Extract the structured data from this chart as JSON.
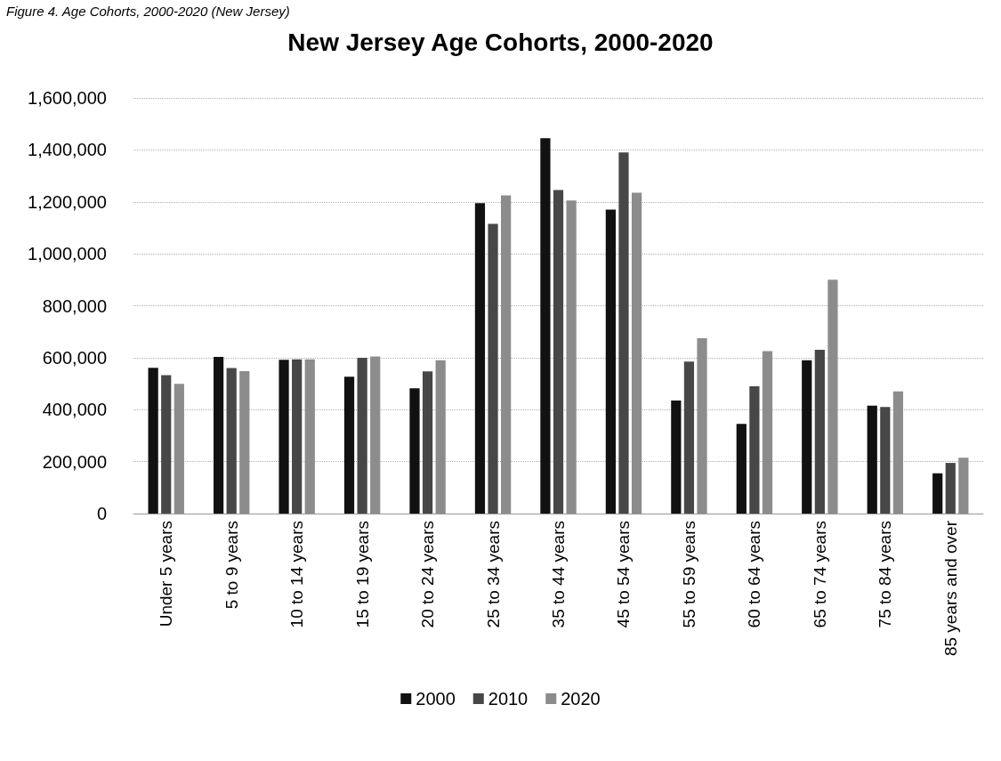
{
  "chart_data": {
    "type": "bar",
    "title": "New Jersey Age Cohorts, 2000-2020",
    "annotations": [
      "Figure 4. Age Cohorts, 2000-2020 (New Jersey)"
    ],
    "categories": [
      "Under 5 years",
      "5 to 9 years",
      "10 to 14 years",
      "15 to 19 years",
      "20 to 24 years",
      "25 to 34 years",
      "35 to 44 years",
      "45 to 54 years",
      "55 to 59 years",
      "60 to 64 years",
      "65 to 74 years",
      "75 to 84 years",
      "85 years and over"
    ],
    "series": [
      {
        "name": "2000",
        "color": "#111111",
        "values": [
          561000,
          603000,
          592000,
          527000,
          482000,
          1195000,
          1445000,
          1170000,
          435000,
          345000,
          590000,
          415000,
          155000
        ]
      },
      {
        "name": "2010",
        "color": "#474747",
        "values": [
          533000,
          560000,
          594000,
          600000,
          547000,
          1115000,
          1245000,
          1390000,
          585000,
          490000,
          630000,
          410000,
          195000
        ]
      },
      {
        "name": "2020",
        "color": "#8c8c8c",
        "values": [
          499000,
          548000,
          594000,
          605000,
          590000,
          1225000,
          1205000,
          1235000,
          675000,
          625000,
          900000,
          470000,
          215000
        ]
      }
    ],
    "ylim": [
      0,
      1600000
    ],
    "yticks": [
      0,
      {
        "value": 200000,
        "label": "200,000"
      },
      {
        "value": 400000,
        "label": "400,000"
      },
      {
        "value": 600000,
        "label": "600,000"
      },
      {
        "value": 800000,
        "label": "800,000"
      },
      {
        "value": 1000000,
        "label": "1,000,000"
      },
      {
        "value": 1200000,
        "label": "1,200,000"
      },
      {
        "value": 1400000,
        "label": "1,400,000"
      },
      {
        "value": 1600000,
        "label": "1,600,000"
      }
    ],
    "grid": "y",
    "legend": "bottom"
  }
}
